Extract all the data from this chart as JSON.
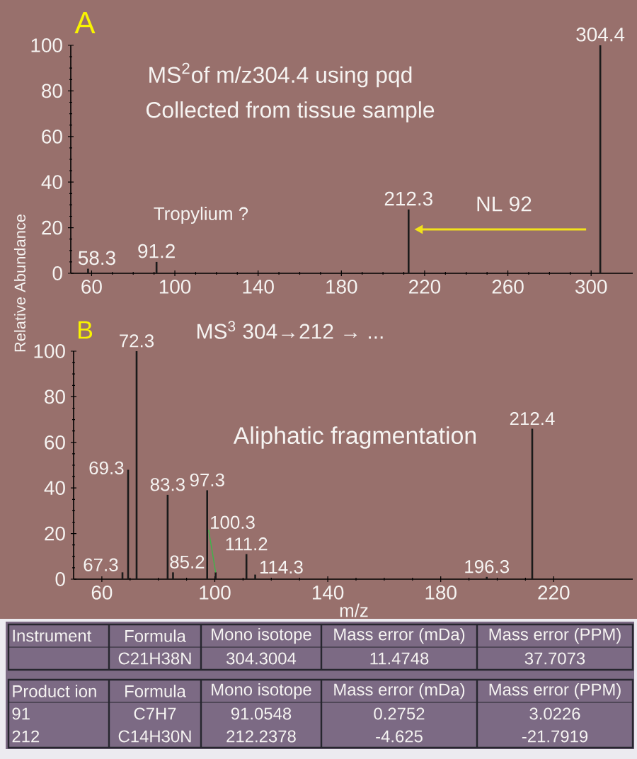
{
  "chart_data": [
    {
      "type": "bar",
      "title": "A",
      "ylabel": "Relative Abundance",
      "annotations": [
        "MS$^{2}$of m/z304.4 using pqd",
        "Collected from tissue sample",
        "Tropylium ?",
        "NL 92",
        {
          "text": "58.3",
          "x": 58.3,
          "y": 2
        },
        {
          "text": "91.2",
          "x": 91.2,
          "y": 5
        },
        {
          "text": "212.3",
          "x": 212.3,
          "y": 28
        },
        {
          "text": "304.4",
          "x": 304.4,
          "y": 100
        }
      ],
      "x": [
        58.3,
        91.2,
        212.3,
        304.4
      ],
      "values": [
        2,
        5,
        28,
        100
      ],
      "color": "#1a1a1a",
      "xlim": [
        50,
        320
      ],
      "ylim": [
        0,
        100
      ],
      "xticks": [
        60,
        100,
        140,
        180,
        220,
        260,
        300
      ],
      "yticks": [
        0,
        20,
        40,
        60,
        80,
        100
      ]
    },
    {
      "type": "bar",
      "title": "B",
      "xlabel": "m/z",
      "annotations": [
        "MS$^{3}$ 304→212 → ...",
        "Aliphatic fragmentation",
        {
          "text": "67.3",
          "x": 67.3,
          "y": 3
        },
        {
          "text": "69.3",
          "x": 69.3,
          "y": 48
        },
        {
          "text": "72.3",
          "x": 72.3,
          "y": 100
        },
        {
          "text": "83.3",
          "x": 83.3,
          "y": 37
        },
        {
          "text": "85.2",
          "x": 85.2,
          "y": 3
        },
        {
          "text": "97.3",
          "x": 97.3,
          "y": 39
        },
        {
          "text": "100.3",
          "x": 100.3,
          "y": 3
        },
        {
          "text": "111.2",
          "x": 111.2,
          "y": 11
        },
        {
          "text": "114.3",
          "x": 114.3,
          "y": 2
        },
        {
          "text": "196.3",
          "x": 196.3,
          "y": 1
        },
        {
          "text": "212.4",
          "x": 212.4,
          "y": 66
        }
      ],
      "x": [
        67.3,
        69.3,
        72.3,
        83.3,
        85.2,
        97.3,
        100.3,
        111.2,
        114.3,
        196.3,
        212.4
      ],
      "values": [
        3,
        48,
        100,
        37,
        3,
        39,
        3,
        11,
        2,
        1,
        66
      ],
      "color": "#1a1a1a",
      "xlim": [
        50,
        248
      ],
      "ylim": [
        0,
        100
      ],
      "xticks": [
        60,
        100,
        140,
        180,
        220
      ],
      "yticks": [
        0,
        20,
        40,
        60,
        80,
        100
      ]
    },
    {
      "type": "other",
      "categories": [
        "Instrument",
        "Formula",
        "Mono isotope",
        "Mass error (mDa)",
        "Mass error (PPM)"
      ],
      "cell_labels": [
        [
          null,
          "C21H38N",
          "304.3004",
          "11.4748",
          "37.7073"
        ]
      ]
    },
    {
      "type": "other",
      "categories": [
        "Product ion",
        "Formula",
        "Mono isotope",
        "Mass error (mDa)",
        "Mass error (PPM)"
      ],
      "cell_labels": [
        [
          "91",
          "C7H7",
          "91.0548",
          "0.2752",
          "3.0226"
        ],
        [
          "212",
          "C14H30N",
          "212.2378",
          "-4.625",
          "-21.7919"
        ]
      ]
    }
  ]
}
